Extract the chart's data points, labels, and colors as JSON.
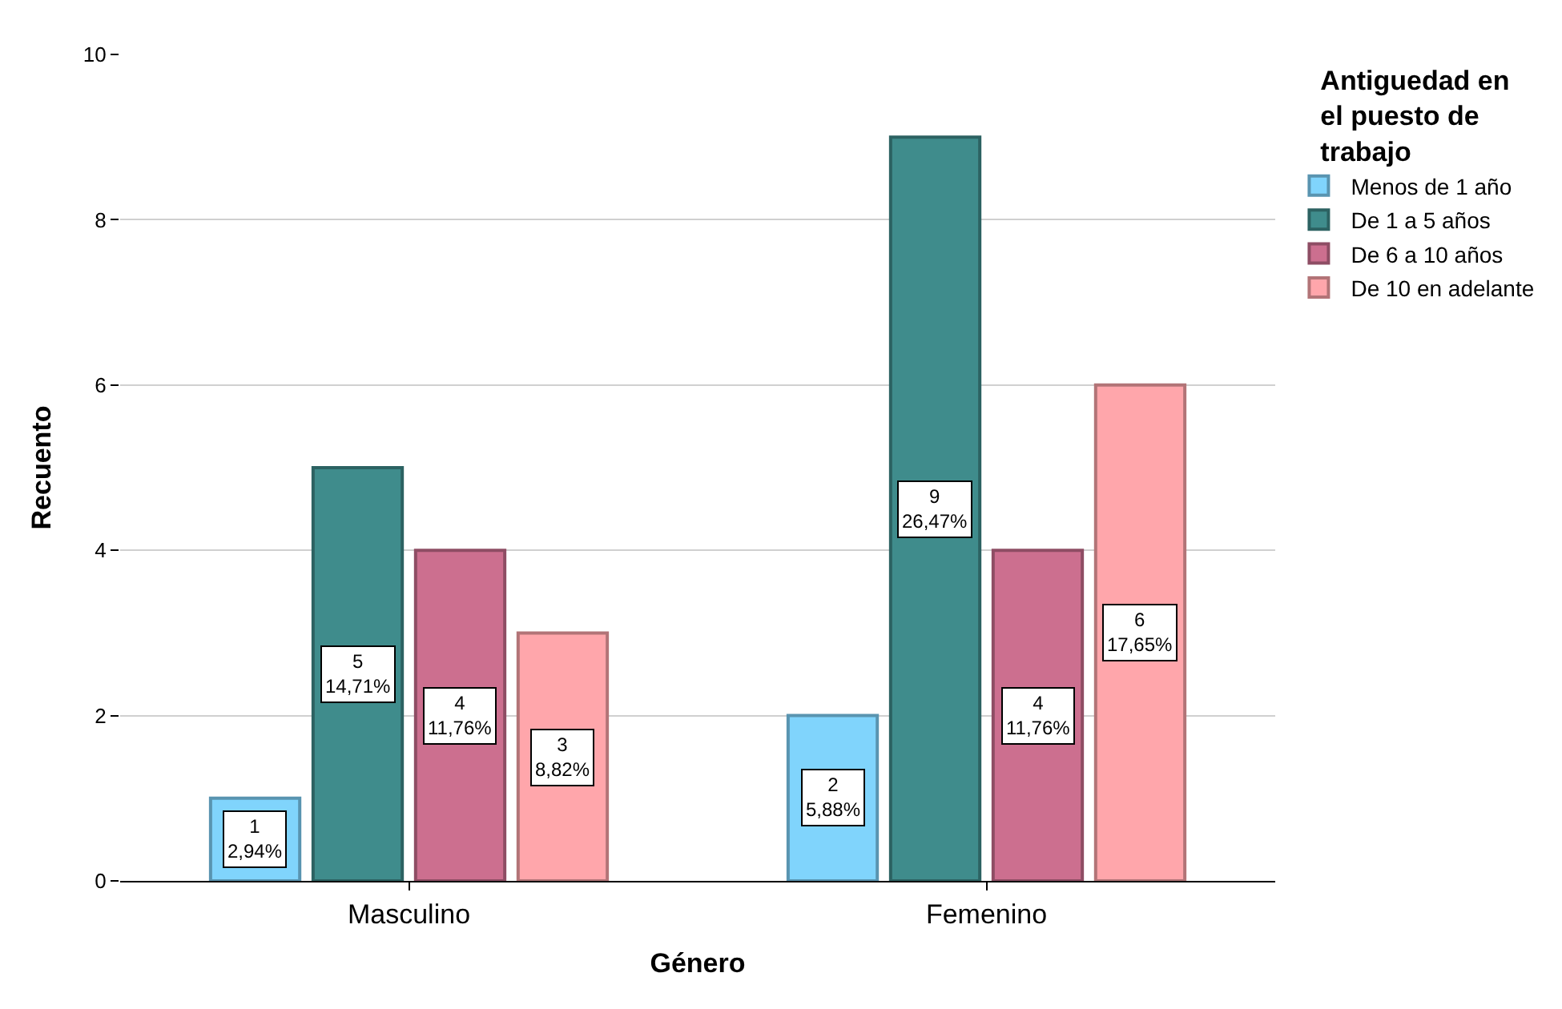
{
  "chart_data": {
    "type": "bar",
    "xlabel": "Género",
    "ylabel": "Recuento",
    "legend_title": "Antiguedad en el puesto de trabajo",
    "categories": [
      "Masculino",
      "Femenino"
    ],
    "series": [
      {
        "name": "Menos de 1 año",
        "color": "#80d4fc",
        "values": [
          1,
          2
        ],
        "value_labels": [
          "1\n2,94%",
          "2\n5,88%"
        ]
      },
      {
        "name": "De 1 a 5 años",
        "color": "#3f8c8c",
        "values": [
          5,
          9
        ],
        "value_labels": [
          "5\n14,71%",
          "9\n26,47%"
        ]
      },
      {
        "name": "De 6 a 10 años",
        "color": "#cc6f8f",
        "values": [
          4,
          4
        ],
        "value_labels": [
          "4\n11,76%",
          "4\n11,76%"
        ]
      },
      {
        "name": "De 10 en adelante",
        "color": "#ffa6ab",
        "values": [
          3,
          6
        ],
        "value_labels": [
          "3\n8,82%",
          "6\n17,65%"
        ]
      }
    ],
    "ylim": [
      0,
      10
    ],
    "yticks": [
      0,
      2,
      4,
      6,
      8,
      10
    ],
    "grid": "y",
    "legend": "top right"
  }
}
